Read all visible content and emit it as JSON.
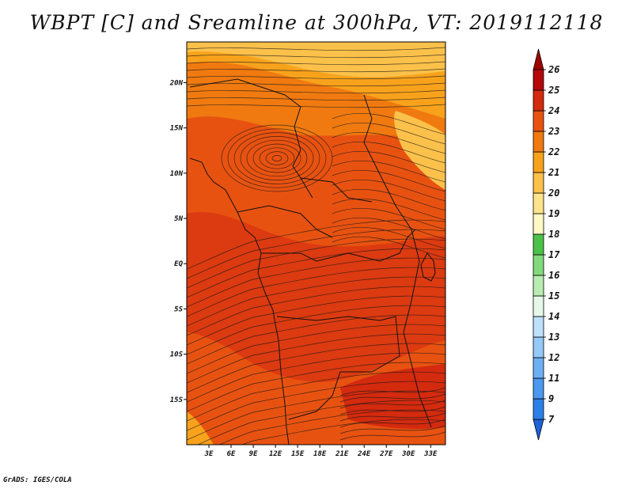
{
  "title": "WBPT [C] and Sreamline at 300hPa, VT: 2019112118",
  "footer": "GrADS: IGES/COLA",
  "map": {
    "lat_ticks": [
      "20N",
      "15N",
      "10N",
      "5N",
      "EQ",
      "5S",
      "10S",
      "15S"
    ],
    "lon_ticks": [
      "3E",
      "6E",
      "9E",
      "12E",
      "15E",
      "18E",
      "21E",
      "24E",
      "27E",
      "30E",
      "33E"
    ],
    "lon_range": [
      0,
      35
    ],
    "lat_range": [
      -20,
      24.5
    ]
  },
  "colorbar": {
    "labels": [
      "7",
      "9",
      "11",
      "12",
      "13",
      "14",
      "15",
      "16",
      "17",
      "18",
      "19",
      "20",
      "21",
      "22",
      "23",
      "24",
      "25",
      "26"
    ],
    "colors": [
      "#1f63dc",
      "#2d7fe8",
      "#4a98ef",
      "#6cb0f3",
      "#95c9f7",
      "#bfe0fa",
      "#e6f8ea",
      "#b8ecb0",
      "#84d97d",
      "#4cc14a",
      "#fff8c4",
      "#fde48c",
      "#fcc14a",
      "#f8a21c",
      "#f07a10",
      "#e85210",
      "#d42a0e",
      "#b4080c",
      "#a00000"
    ]
  }
}
